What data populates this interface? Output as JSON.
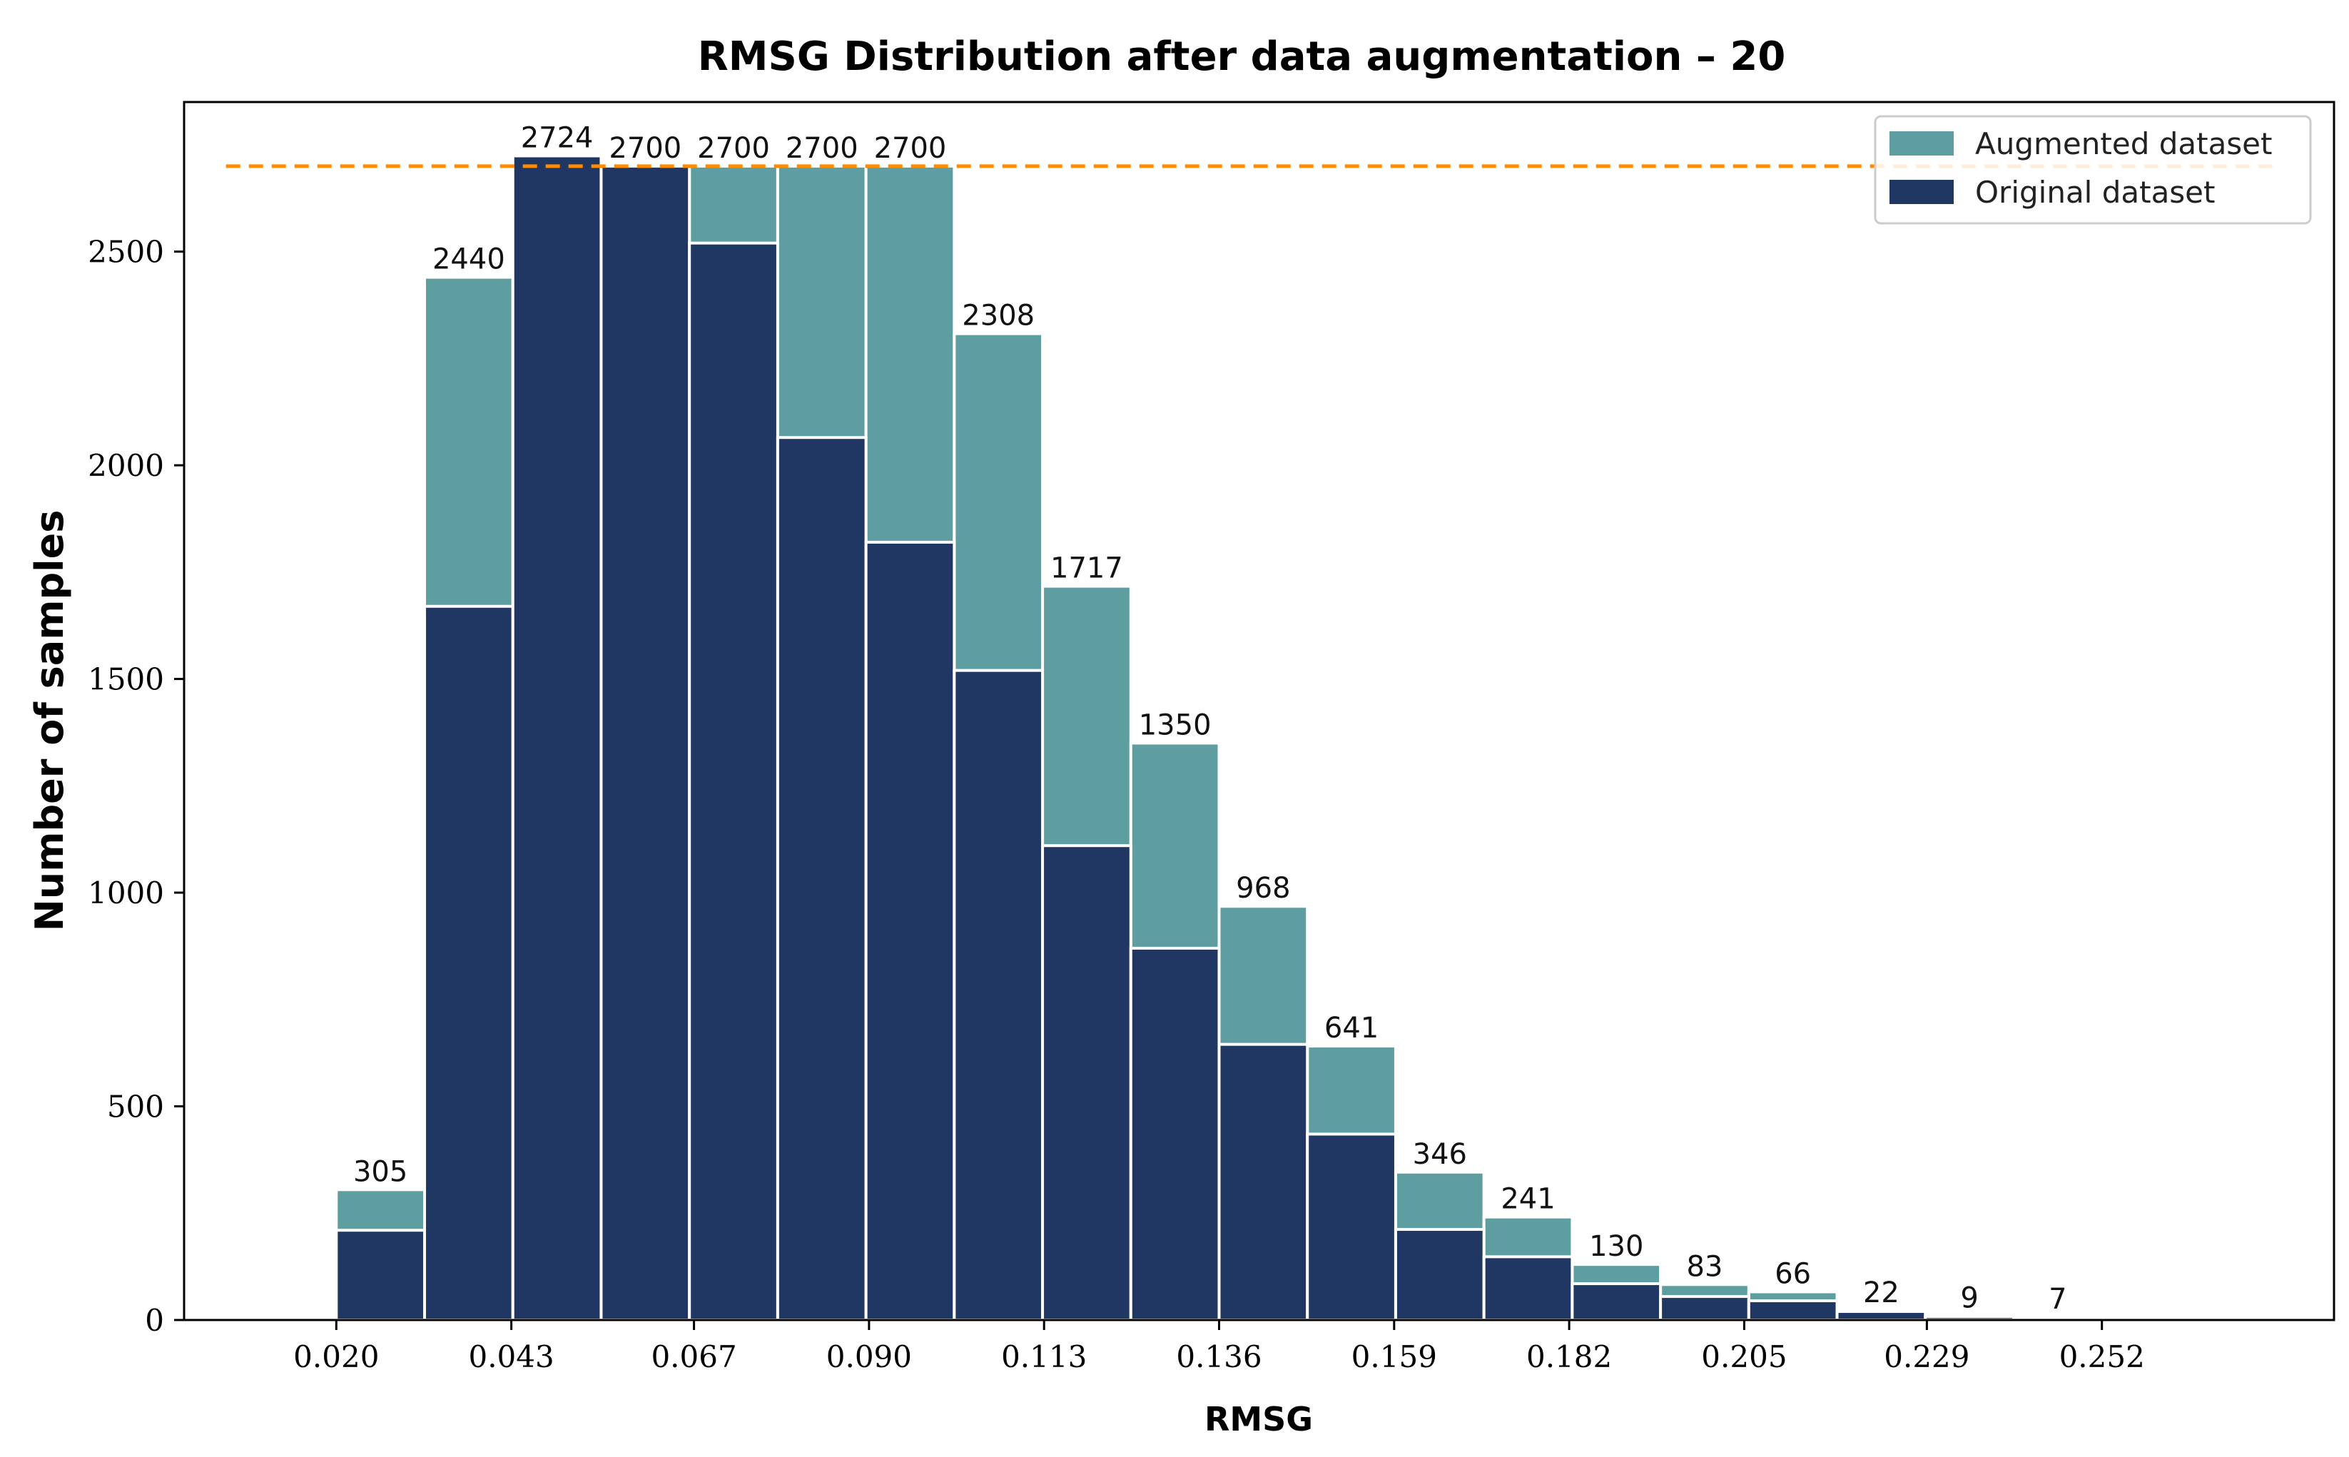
{
  "chart_data": {
    "type": "bar",
    "title": "RMSG Distribution after data augmentation – 20",
    "xlabel": "RMSG",
    "ylabel": "Number of samples",
    "xlim": [
      0.0,
      0.2825
    ],
    "ylim": [
      0,
      2850
    ],
    "xticks": [
      0.02,
      0.043,
      0.067,
      0.09,
      0.113,
      0.136,
      0.159,
      0.182,
      0.205,
      0.229,
      0.252
    ],
    "xtick_labels": [
      "0.020",
      "0.043",
      "0.067",
      "0.090",
      "0.113",
      "0.136",
      "0.159",
      "0.182",
      "0.205",
      "0.229",
      "0.252"
    ],
    "yticks": [
      0,
      500,
      1000,
      1500,
      2000,
      2500
    ],
    "ytick_labels": [
      "0",
      "500",
      "1000",
      "1500",
      "2000",
      "2500"
    ],
    "bin_edges": [
      0.02,
      0.0316,
      0.0432,
      0.0548,
      0.0664,
      0.078,
      0.0896,
      0.1012,
      0.1128,
      0.1244,
      0.136,
      0.1476,
      0.1592,
      0.1708,
      0.1824,
      0.194,
      0.2056,
      0.2172,
      0.2288,
      0.2404,
      0.252
    ],
    "series": [
      {
        "name": "Augmented dataset",
        "color": "#5f9ea0",
        "values": [
          305,
          2440,
          2724,
          2700,
          2700,
          2700,
          2700,
          2308,
          1717,
          1350,
          968,
          641,
          346,
          241,
          130,
          83,
          66,
          22,
          9,
          7
        ]
      },
      {
        "name": "Original dataset",
        "color": "#213763",
        "values": [
          210,
          1670,
          2724,
          2700,
          2520,
          2065,
          1820,
          1520,
          1110,
          870,
          645,
          435,
          212,
          148,
          85,
          55,
          45,
          20,
          8,
          5
        ]
      }
    ],
    "data_labels": [
      "305",
      "2440",
      "2724",
      "2700",
      "2700",
      "2700",
      "2700",
      "2308",
      "1717",
      "1350",
      "968",
      "641",
      "346",
      "241",
      "130",
      "83",
      "66",
      "22",
      "9",
      "7"
    ],
    "reference_line": {
      "value": 2700,
      "color": "#ff8c00",
      "style": "dashed"
    },
    "legend": {
      "position": "top-right",
      "entries": [
        "Augmented dataset",
        "Original dataset"
      ]
    },
    "grid": false
  }
}
